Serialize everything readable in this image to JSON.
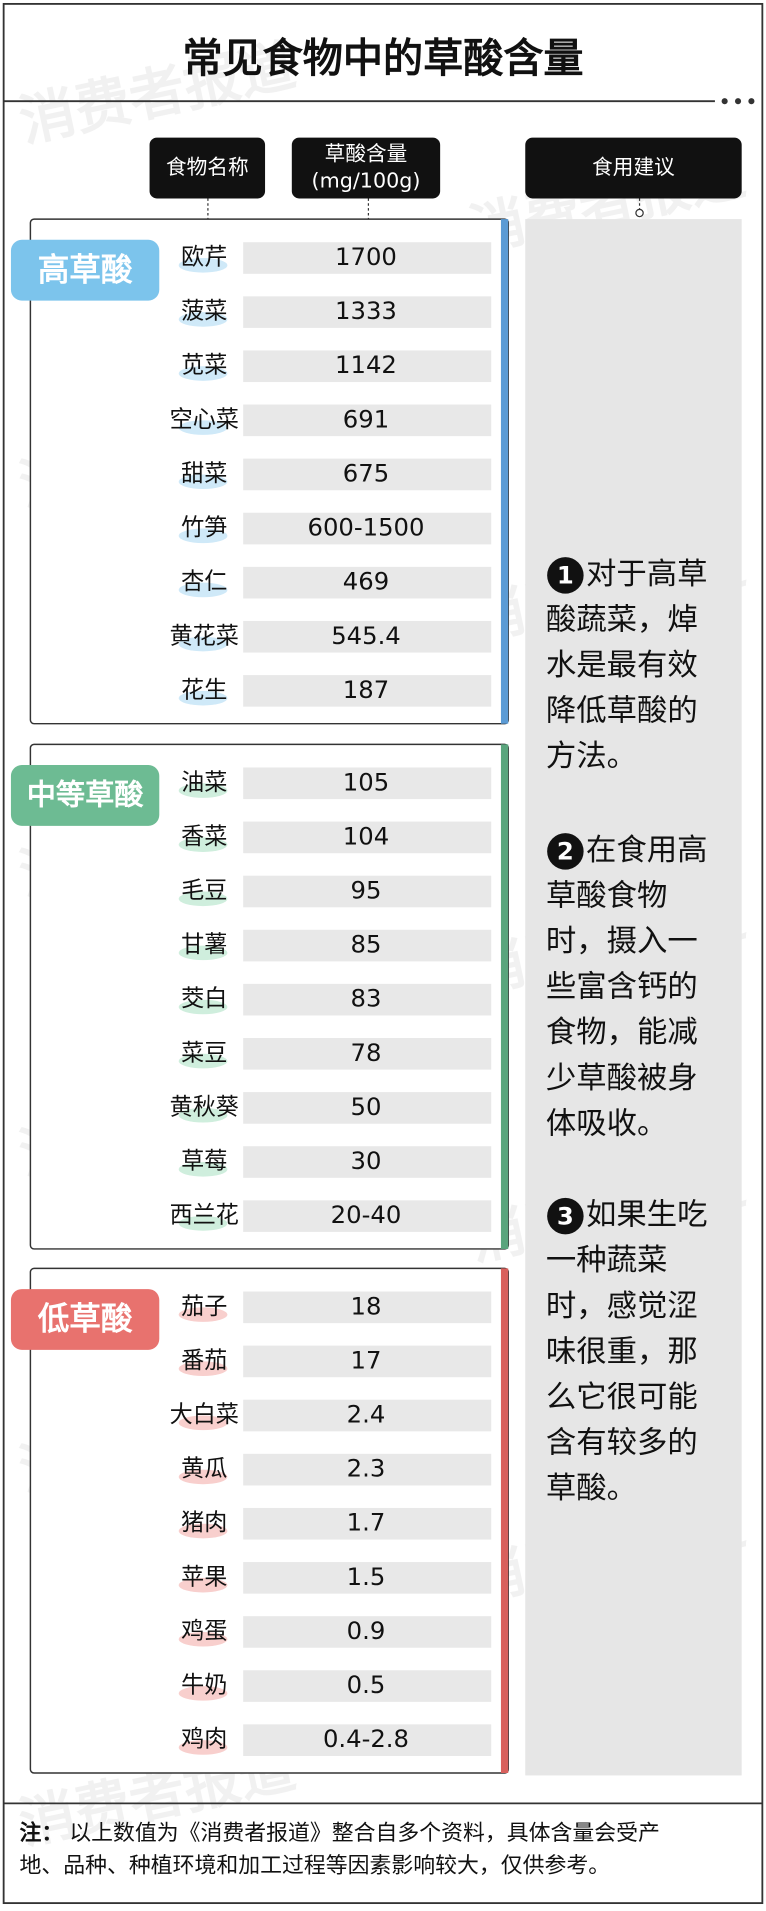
{
  "title": "常见食物中的草酸含量",
  "watermark": "消费者报道",
  "headers": {
    "name": "食物名称",
    "content": [
      "草酸含量",
      "(mg/100g)"
    ],
    "advice": "食用建议"
  },
  "groups": [
    {
      "label": "高草酸",
      "items": [
        {
          "name": "欧芹",
          "value": "1700"
        },
        {
          "name": "菠菜",
          "value": "1333"
        },
        {
          "name": "苋菜",
          "value": "1142"
        },
        {
          "name": "空心菜",
          "value": "691"
        },
        {
          "name": "甜菜",
          "value": "675"
        },
        {
          "name": "竹笋",
          "value": "600-1500"
        },
        {
          "name": "杏仁",
          "value": "469"
        },
        {
          "name": "黄花菜",
          "value": "545.4"
        },
        {
          "name": "花生",
          "value": "187"
        }
      ]
    },
    {
      "label": "中等草酸",
      "items": [
        {
          "name": "油菜",
          "value": "105"
        },
        {
          "name": "香菜",
          "value": "104"
        },
        {
          "name": "毛豆",
          "value": "95"
        },
        {
          "name": "甘薯",
          "value": "85"
        },
        {
          "name": "茭白",
          "value": "83"
        },
        {
          "name": "菜豆",
          "value": "78"
        },
        {
          "name": "黄秋葵",
          "value": "50"
        },
        {
          "name": "草莓",
          "value": "30"
        },
        {
          "name": "西兰花",
          "value": "20-40"
        }
      ]
    },
    {
      "label": "低草酸",
      "items": [
        {
          "name": "茄子",
          "value": "18"
        },
        {
          "name": "番茄",
          "value": "17"
        },
        {
          "name": "大白菜",
          "value": "2.4"
        },
        {
          "name": "黄瓜",
          "value": "2.3"
        },
        {
          "name": "猪肉",
          "value": "1.7"
        },
        {
          "name": "苹果",
          "value": "1.5"
        },
        {
          "name": "鸡蛋",
          "value": "0.9"
        },
        {
          "name": "牛奶",
          "value": "0.5"
        },
        {
          "name": "鸡肉",
          "value": "0.4-2.8"
        }
      ]
    }
  ],
  "advice": [
    {
      "number": "1",
      "lines": [
        "对于高草",
        "酸蔬菜，焯",
        "水是最有效",
        "降低草酸的",
        "方法。"
      ]
    },
    {
      "number": "2",
      "lines": [
        "在食用高",
        "草酸食物",
        "时，摄入一",
        "些富含钙的",
        "食物，能减",
        "少草酸被身",
        "体吸收。"
      ]
    },
    {
      "number": "3",
      "lines": [
        "如果生吃",
        "一种蔬菜",
        "时，感觉涩",
        "味很重，那",
        "么它很可能",
        "含有较多的",
        "草酸。"
      ]
    }
  ],
  "note": {
    "label": "注：",
    "lines": [
      "以上数值为《消费者报道》整合自多个资料，具体含量会受产",
      "地、品种、种植环境和加工过程等因素影响较大，仅供参考。"
    ]
  }
}
